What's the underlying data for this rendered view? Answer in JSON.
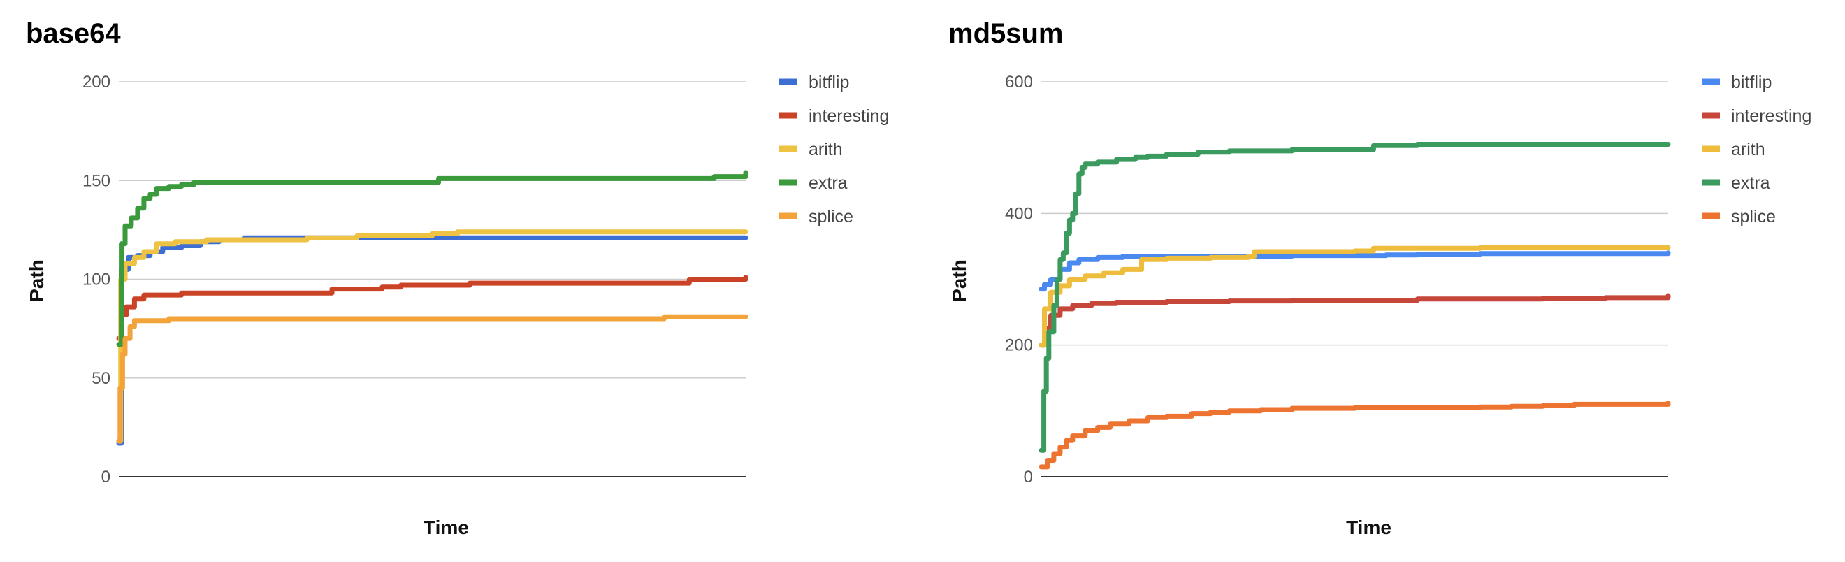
{
  "chart_data": [
    {
      "type": "line",
      "title": "base64",
      "xlabel": "Time",
      "ylabel": "Path",
      "ylim": [
        0,
        200
      ],
      "yticks": [
        0,
        50,
        100,
        150,
        200
      ],
      "xlim": [
        0,
        100
      ],
      "legend_position": "right",
      "grid": true,
      "series": [
        {
          "name": "bitflip",
          "color": "#3c6fd1",
          "points": [
            [
              0,
              17
            ],
            [
              0.4,
              105
            ],
            [
              1.5,
              111
            ],
            [
              3,
              112
            ],
            [
              5,
              114
            ],
            [
              7,
              116
            ],
            [
              10,
              117
            ],
            [
              13,
              119
            ],
            [
              16,
              120
            ],
            [
              20,
              121
            ],
            [
              30,
              121
            ],
            [
              50,
              121
            ],
            [
              70,
              121
            ],
            [
              100,
              121
            ]
          ]
        },
        {
          "name": "interesting",
          "color": "#cb4326",
          "points": [
            [
              0,
              70
            ],
            [
              0.4,
              82
            ],
            [
              1.2,
              86
            ],
            [
              2.5,
              90
            ],
            [
              4,
              92
            ],
            [
              10,
              93
            ],
            [
              33,
              93
            ],
            [
              34,
              95
            ],
            [
              42,
              96
            ],
            [
              45,
              97
            ],
            [
              55,
              97
            ],
            [
              56,
              98
            ],
            [
              90,
              98
            ],
            [
              91,
              100
            ],
            [
              100,
              101
            ]
          ]
        },
        {
          "name": "arith",
          "color": "#eec243",
          "points": [
            [
              0,
              18
            ],
            [
              0.3,
              100
            ],
            [
              1,
              108
            ],
            [
              2.5,
              111
            ],
            [
              4,
              114
            ],
            [
              6,
              118
            ],
            [
              9,
              119
            ],
            [
              14,
              120
            ],
            [
              20,
              120
            ],
            [
              30,
              121
            ],
            [
              38,
              122
            ],
            [
              50,
              123
            ],
            [
              54,
              124
            ],
            [
              100,
              124
            ]
          ]
        },
        {
          "name": "extra",
          "color": "#3a9a3c",
          "points": [
            [
              0,
              67
            ],
            [
              0.4,
              118
            ],
            [
              1,
              127
            ],
            [
              2,
              131
            ],
            [
              3,
              136
            ],
            [
              4,
              141
            ],
            [
              5,
              143
            ],
            [
              6,
              146
            ],
            [
              8,
              147
            ],
            [
              10,
              148
            ],
            [
              12,
              149
            ],
            [
              20,
              149
            ],
            [
              40,
              149
            ],
            [
              50,
              149
            ],
            [
              51,
              151
            ],
            [
              70,
              151
            ],
            [
              90,
              151
            ],
            [
              95,
              152
            ],
            [
              100,
              154
            ]
          ]
        },
        {
          "name": "splice",
          "color": "#f2a43b",
          "points": [
            [
              0,
              18
            ],
            [
              0.2,
              45
            ],
            [
              0.6,
              62
            ],
            [
              1,
              70
            ],
            [
              1.8,
              76
            ],
            [
              2.5,
              79
            ],
            [
              5,
              79
            ],
            [
              8,
              80
            ],
            [
              30,
              80
            ],
            [
              50,
              80
            ],
            [
              60,
              80
            ],
            [
              86,
              80
            ],
            [
              87,
              81
            ],
            [
              100,
              81
            ]
          ]
        }
      ]
    },
    {
      "type": "line",
      "title": "md5sum",
      "xlabel": "Time",
      "ylabel": "Path",
      "ylim": [
        0,
        600
      ],
      "yticks": [
        0,
        200,
        400,
        600
      ],
      "xlim": [
        0,
        100
      ],
      "legend_position": "right",
      "grid": true,
      "series": [
        {
          "name": "bitflip",
          "color": "#4a8af0",
          "points": [
            [
              0,
              285
            ],
            [
              0.5,
              292
            ],
            [
              1.5,
              300
            ],
            [
              3,
              315
            ],
            [
              4.5,
              325
            ],
            [
              6,
              330
            ],
            [
              9,
              333
            ],
            [
              13,
              335
            ],
            [
              20,
              335
            ],
            [
              30,
              335
            ],
            [
              40,
              336
            ],
            [
              55,
              337
            ],
            [
              60,
              338
            ],
            [
              70,
              339
            ],
            [
              100,
              340
            ]
          ]
        },
        {
          "name": "interesting",
          "color": "#c6473a",
          "points": [
            [
              0,
              200
            ],
            [
              0.5,
              225
            ],
            [
              1.5,
              245
            ],
            [
              3,
              255
            ],
            [
              5,
              260
            ],
            [
              8,
              263
            ],
            [
              12,
              265
            ],
            [
              20,
              266
            ],
            [
              30,
              267
            ],
            [
              40,
              268
            ],
            [
              60,
              270
            ],
            [
              80,
              271
            ],
            [
              90,
              272
            ],
            [
              100,
              275
            ]
          ]
        },
        {
          "name": "arith",
          "color": "#eebd3d",
          "points": [
            [
              0,
              200
            ],
            [
              0.5,
              255
            ],
            [
              1.5,
              280
            ],
            [
              3,
              290
            ],
            [
              4.5,
              300
            ],
            [
              7,
              305
            ],
            [
              10,
              310
            ],
            [
              13,
              315
            ],
            [
              16,
              330
            ],
            [
              20,
              332
            ],
            [
              27,
              333
            ],
            [
              33,
              335
            ],
            [
              34,
              342
            ],
            [
              50,
              343
            ],
            [
              53,
              347
            ],
            [
              70,
              348
            ],
            [
              100,
              348
            ]
          ]
        },
        {
          "name": "extra",
          "color": "#3b9b5e",
          "points": [
            [
              0,
              40
            ],
            [
              0.4,
              130
            ],
            [
              0.8,
              180
            ],
            [
              1.2,
              220
            ],
            [
              2,
              260
            ],
            [
              2.5,
              300
            ],
            [
              3,
              330
            ],
            [
              3.5,
              340
            ],
            [
              4,
              370
            ],
            [
              4.5,
              390
            ],
            [
              5,
              400
            ],
            [
              5.5,
              430
            ],
            [
              6,
              460
            ],
            [
              6.5,
              470
            ],
            [
              7,
              475
            ],
            [
              9,
              478
            ],
            [
              12,
              482
            ],
            [
              15,
              485
            ],
            [
              17,
              487
            ],
            [
              20,
              490
            ],
            [
              25,
              493
            ],
            [
              30,
              495
            ],
            [
              40,
              497
            ],
            [
              52,
              497
            ],
            [
              53,
              503
            ],
            [
              60,
              505
            ],
            [
              100,
              505
            ]
          ]
        },
        {
          "name": "splice",
          "color": "#ec7330",
          "points": [
            [
              0,
              15
            ],
            [
              1,
              25
            ],
            [
              2,
              35
            ],
            [
              3,
              45
            ],
            [
              4,
              55
            ],
            [
              5,
              62
            ],
            [
              7,
              70
            ],
            [
              9,
              75
            ],
            [
              11,
              80
            ],
            [
              14,
              85
            ],
            [
              17,
              90
            ],
            [
              20,
              92
            ],
            [
              24,
              96
            ],
            [
              27,
              98
            ],
            [
              30,
              100
            ],
            [
              35,
              102
            ],
            [
              40,
              104
            ],
            [
              50,
              105
            ],
            [
              60,
              105
            ],
            [
              70,
              106
            ],
            [
              75,
              107
            ],
            [
              80,
              108
            ],
            [
              85,
              110
            ],
            [
              100,
              112
            ]
          ]
        }
      ]
    }
  ]
}
